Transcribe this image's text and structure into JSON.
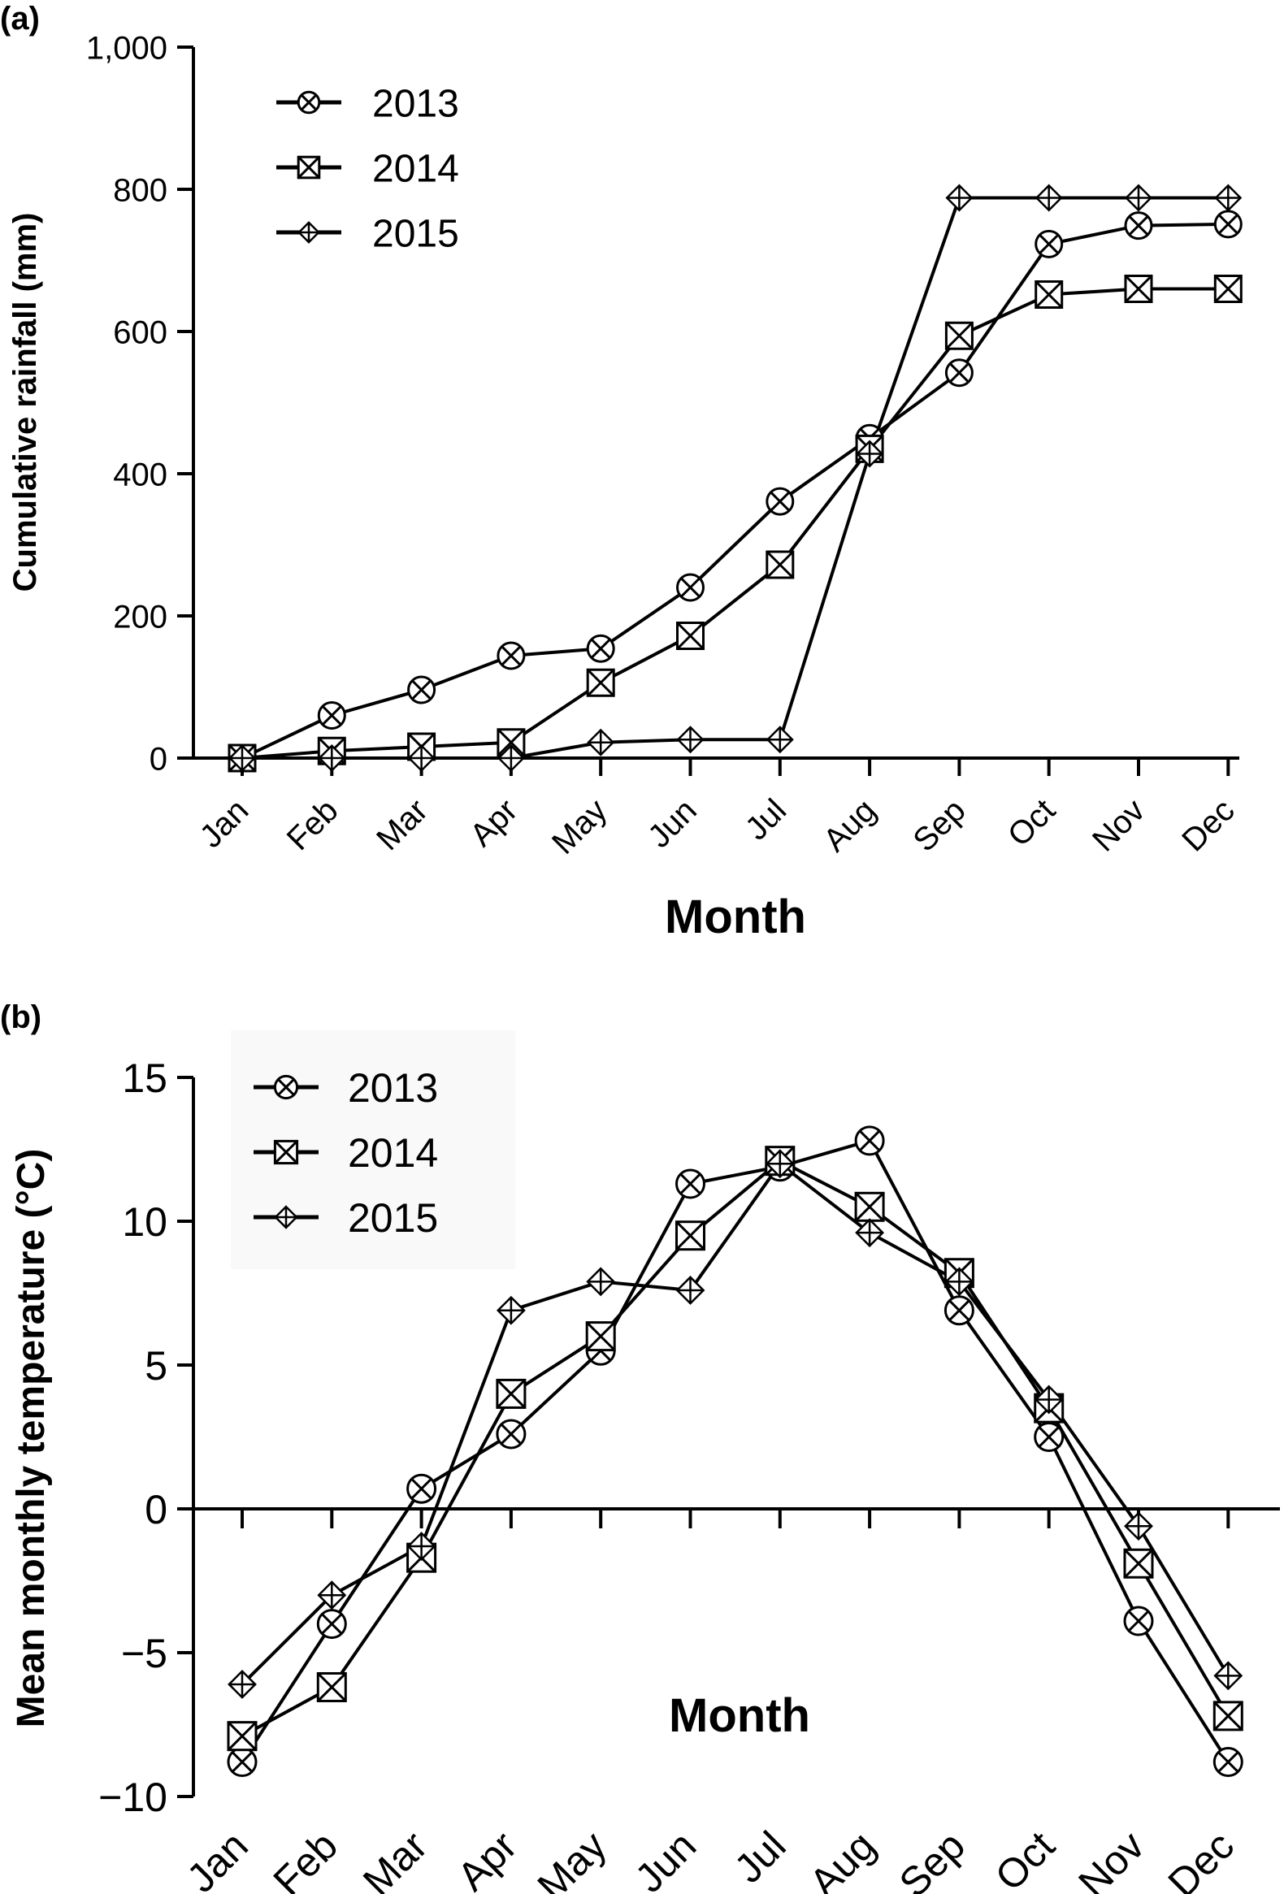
{
  "chart_data": [
    {
      "panel_label": "(a)",
      "type": "line",
      "xlabel": "Month",
      "ylabel": "Cumulative rainfall (mm)",
      "categories": [
        "Jan",
        "Feb",
        "Mar",
        "Apr",
        "May",
        "Jun",
        "Jul",
        "Aug",
        "Sep",
        "Oct",
        "Nov",
        "Dec"
      ],
      "ylim": [
        0,
        1000
      ],
      "yticks": [
        0,
        200,
        400,
        600,
        800,
        1000
      ],
      "ytick_labels": [
        "0",
        "200",
        "400",
        "600",
        "800",
        "1,000"
      ],
      "legend_position": "top-left",
      "grid": false,
      "series": [
        {
          "name": "2013",
          "marker": "circle-x",
          "values": [
            0,
            60,
            96,
            144,
            154,
            240,
            361,
            450,
            542,
            723,
            749,
            751
          ]
        },
        {
          "name": "2014",
          "marker": "square-x",
          "values": [
            0,
            10,
            16,
            22,
            106,
            172,
            272,
            435,
            594,
            652,
            660,
            660
          ]
        },
        {
          "name": "2015",
          "marker": "diamond-plus",
          "values": [
            0,
            0,
            0,
            0,
            22,
            26,
            26,
            428,
            788,
            788,
            788,
            788
          ]
        }
      ]
    },
    {
      "panel_label": "(b)",
      "type": "line",
      "xlabel": "Month",
      "ylabel": "Mean monthly temperature (°C)",
      "categories": [
        "Jan",
        "Feb",
        "Mar",
        "Apr",
        "May",
        "Jun",
        "Jul",
        "Aug",
        "Sep",
        "Oct",
        "Nov",
        "Dec"
      ],
      "ylim": [
        -10,
        15
      ],
      "yticks": [
        -10,
        -5,
        0,
        5,
        10,
        15
      ],
      "ytick_labels": [
        "−10",
        "−5",
        "0",
        "5",
        "10",
        "15"
      ],
      "legend_position": "top-left",
      "grid": false,
      "series": [
        {
          "name": "2013",
          "marker": "circle-x",
          "values": [
            -8.8,
            -4.0,
            0.7,
            2.6,
            5.5,
            11.3,
            11.9,
            12.8,
            6.9,
            2.5,
            -3.9,
            -8.8
          ]
        },
        {
          "name": "2014",
          "marker": "square-x",
          "values": [
            -7.9,
            -6.2,
            -1.7,
            4.0,
            6.0,
            9.5,
            12.1,
            10.5,
            8.2,
            3.5,
            -1.9,
            -7.2
          ]
        },
        {
          "name": "2015",
          "marker": "diamond-plus",
          "values": [
            -6.1,
            -3.0,
            -1.3,
            6.9,
            7.9,
            7.6,
            12.0,
            9.6,
            7.9,
            3.8,
            -0.6,
            -5.8
          ]
        }
      ]
    }
  ]
}
